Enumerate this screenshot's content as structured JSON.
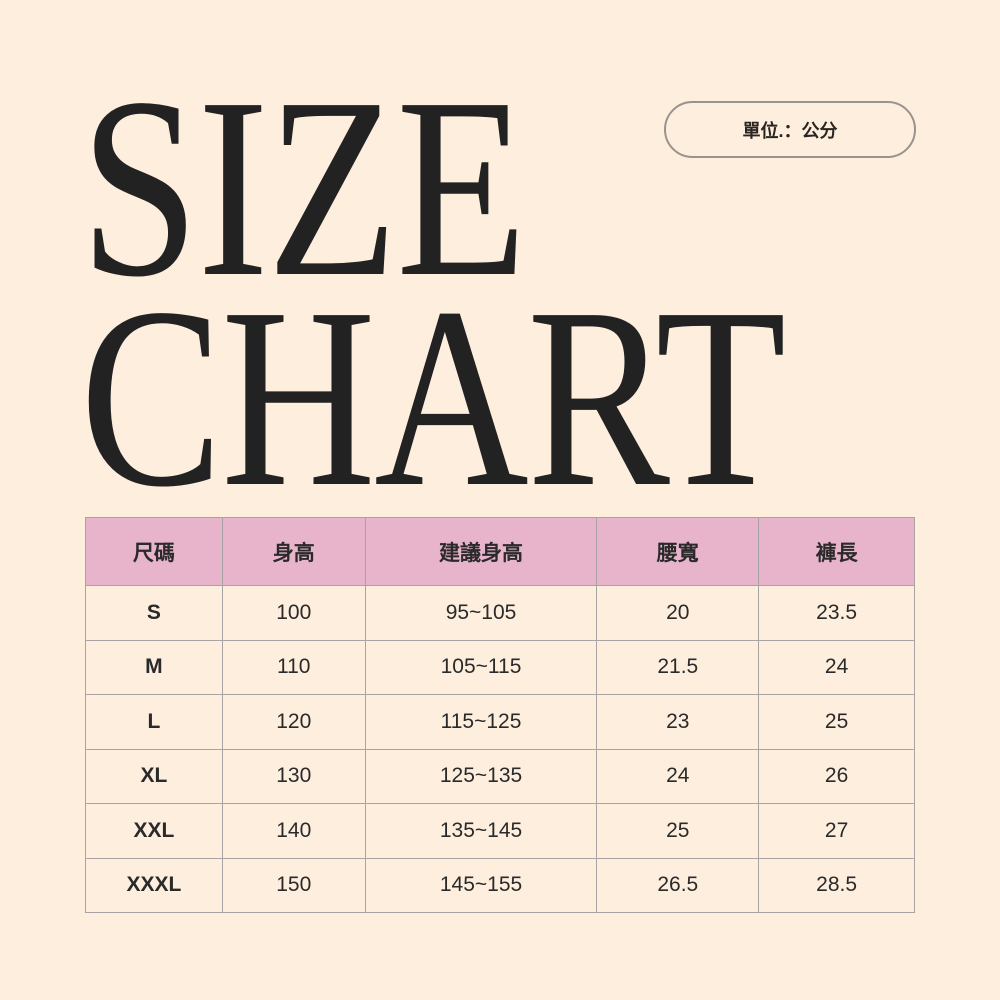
{
  "title": {
    "line1": "SIZE",
    "line2": "CHART"
  },
  "unit_label": "單位.：公分",
  "colors": {
    "background": "#fdeede",
    "header": "#e8b4cb",
    "text": "#222222"
  },
  "table": {
    "headers": [
      "尺碼",
      "身高",
      "建議身高",
      "腰寬",
      "褲長"
    ],
    "rows": [
      [
        "S",
        "100",
        "95~105",
        "20",
        "23.5"
      ],
      [
        "M",
        "110",
        "105~115",
        "21.5",
        "24"
      ],
      [
        "L",
        "120",
        "115~125",
        "23",
        "25"
      ],
      [
        "XL",
        "130",
        "125~135",
        "24",
        "26"
      ],
      [
        "XXL",
        "140",
        "135~145",
        "25",
        "27"
      ],
      [
        "XXXL",
        "150",
        "145~155",
        "26.5",
        "28.5"
      ]
    ]
  }
}
